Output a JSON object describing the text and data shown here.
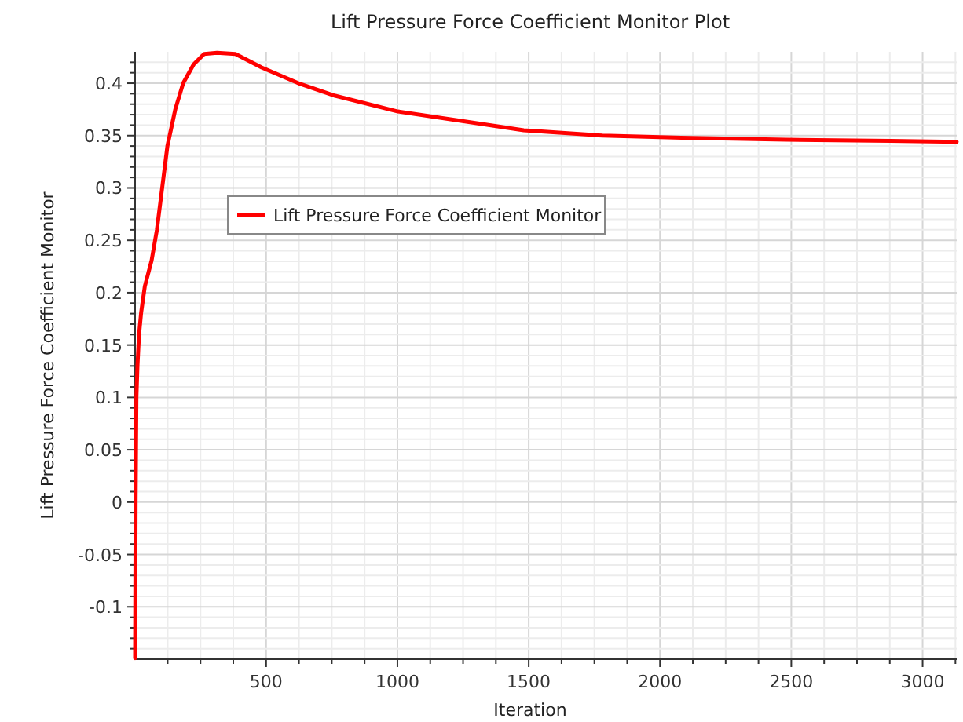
{
  "chart_data": {
    "type": "line",
    "title": "Lift Pressure Force Coefficient Monitor Plot",
    "xlabel": "Iteration",
    "ylabel": "Lift Pressure Force Coefficient Monitor",
    "x": [
      1,
      3,
      6,
      10,
      16,
      24,
      38,
      64,
      84,
      104,
      124,
      154,
      184,
      224,
      264,
      313,
      383,
      483,
      623,
      763,
      1002,
      1242,
      1481,
      1781,
      2081,
      2480,
      2879,
      3130
    ],
    "series": [
      {
        "name": "Lift Pressure Force Coefficient Monitor",
        "color": "#ff0000",
        "values": [
          -0.149,
          0,
          0.1,
          0.13,
          0.16,
          0.181,
          0.206,
          0.231,
          0.26,
          0.3,
          0.34,
          0.375,
          0.4,
          0.418,
          0.428,
          0.429,
          0.428,
          0.415,
          0.4,
          0.388,
          0.373,
          0.364,
          0.355,
          0.35,
          0.348,
          0.346,
          0.345,
          0.344
        ]
      }
    ],
    "xlim": [
      1,
      3130
    ],
    "ylim": [
      -0.15,
      0.43
    ],
    "xticks": [
      {
        "value": 125,
        "label": null
      },
      {
        "value": 250,
        "label": null
      },
      {
        "value": 375,
        "label": null
      },
      500,
      {
        "value": 625,
        "label": null
      },
      {
        "value": 750,
        "label": null
      },
      {
        "value": 875,
        "label": null
      },
      1000,
      {
        "value": 1125,
        "label": null
      },
      {
        "value": 1250,
        "label": null
      },
      {
        "value": 1375,
        "label": null
      },
      1500,
      {
        "value": 1625,
        "label": null
      },
      {
        "value": 1750,
        "label": null
      },
      {
        "value": 1875,
        "label": null
      },
      2000,
      {
        "value": 2125,
        "label": null
      },
      {
        "value": 2250,
        "label": null
      },
      {
        "value": 2375,
        "label": null
      },
      2500,
      {
        "value": 2625,
        "label": null
      },
      {
        "value": 2750,
        "label": null
      },
      {
        "value": 2875,
        "label": null
      },
      3000,
      {
        "value": 3125,
        "label": null
      }
    ],
    "yticks": [
      {
        "value": -0.14,
        "label": null
      },
      {
        "value": -0.13,
        "label": null
      },
      {
        "value": -0.12,
        "label": null
      },
      {
        "value": -0.11,
        "label": null
      },
      -0.1,
      {
        "value": -0.09,
        "label": null
      },
      {
        "value": -0.08,
        "label": null
      },
      {
        "value": -0.07,
        "label": null
      },
      {
        "value": -0.06,
        "label": null
      },
      -0.05,
      {
        "value": -0.04,
        "label": null
      },
      {
        "value": -0.03,
        "label": null
      },
      {
        "value": -0.02,
        "label": null
      },
      {
        "value": -0.01,
        "label": null
      },
      0,
      {
        "value": 0.01,
        "label": null
      },
      {
        "value": 0.02,
        "label": null
      },
      {
        "value": 0.03,
        "label": null
      },
      {
        "value": 0.04,
        "label": null
      },
      0.05,
      {
        "value": 0.06,
        "label": null
      },
      {
        "value": 0.07,
        "label": null
      },
      {
        "value": 0.08,
        "label": null
      },
      {
        "value": 0.09,
        "label": null
      },
      0.1,
      {
        "value": 0.11,
        "label": null
      },
      {
        "value": 0.12,
        "label": null
      },
      {
        "value": 0.13,
        "label": null
      },
      {
        "value": 0.14,
        "label": null
      },
      0.15,
      {
        "value": 0.16,
        "label": null
      },
      {
        "value": 0.17,
        "label": null
      },
      {
        "value": 0.18,
        "label": null
      },
      {
        "value": 0.19,
        "label": null
      },
      0.2,
      {
        "value": 0.21,
        "label": null
      },
      {
        "value": 0.22,
        "label": null
      },
      {
        "value": 0.23,
        "label": null
      },
      {
        "value": 0.24,
        "label": null
      },
      0.25,
      {
        "value": 0.26,
        "label": null
      },
      {
        "value": 0.27,
        "label": null
      },
      {
        "value": 0.28,
        "label": null
      },
      {
        "value": 0.29,
        "label": null
      },
      0.3,
      {
        "value": 0.31,
        "label": null
      },
      {
        "value": 0.32,
        "label": null
      },
      {
        "value": 0.33,
        "label": null
      },
      {
        "value": 0.34,
        "label": null
      },
      0.35,
      {
        "value": 0.36,
        "label": null
      },
      {
        "value": 0.37,
        "label": null
      },
      {
        "value": 0.38,
        "label": null
      },
      {
        "value": 0.39,
        "label": null
      },
      0.4,
      {
        "value": 0.41,
        "label": null
      },
      {
        "value": 0.42,
        "label": null
      }
    ],
    "grid": true,
    "legend": "top left",
    "line_style": "solid",
    "marker": "none"
  }
}
